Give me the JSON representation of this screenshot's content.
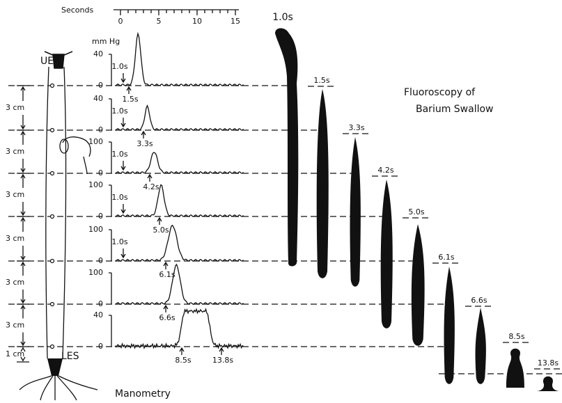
{
  "time_scale": {
    "label": "Seconds",
    "ticks": [
      "0",
      "5",
      "10",
      "15"
    ]
  },
  "pressure_unit": "mm Hg",
  "labels": {
    "ues": "UES",
    "les": "LES",
    "manometry": "Manometry",
    "fluoroscopy_title": [
      "Fluoroscopy of",
      "Barium Swallow"
    ]
  },
  "distances": [
    "3 cm",
    "3 cm",
    "3 cm",
    "3 cm",
    "3 cm",
    "3 cm",
    "1 cm"
  ],
  "traces": [
    {
      "top": "40",
      "zero": "0",
      "marks": [
        "1.0s",
        "1.5s"
      ]
    },
    {
      "top": "40",
      "zero": "0",
      "marks": [
        "1.0s",
        "3.3s"
      ]
    },
    {
      "top": "100",
      "zero": "0",
      "marks": [
        "1.0s",
        "4.2s"
      ]
    },
    {
      "top": "100",
      "zero": "0",
      "marks": [
        "1.0s",
        "5.0s"
      ]
    },
    {
      "top": "100",
      "zero": "0",
      "marks": [
        "1.0s",
        "6.1s"
      ]
    },
    {
      "top": "100",
      "zero": "0",
      "marks": [
        "6.6s"
      ]
    },
    {
      "top": "40",
      "zero": "0",
      "marks": [
        "8.5s",
        "13.8s"
      ]
    }
  ],
  "fluoroscopy": [
    "1.0s",
    "1.5s",
    "3.3s",
    "4.2s",
    "5.0s",
    "6.1s",
    "6.6s",
    "8.5s",
    "13.8s"
  ]
}
